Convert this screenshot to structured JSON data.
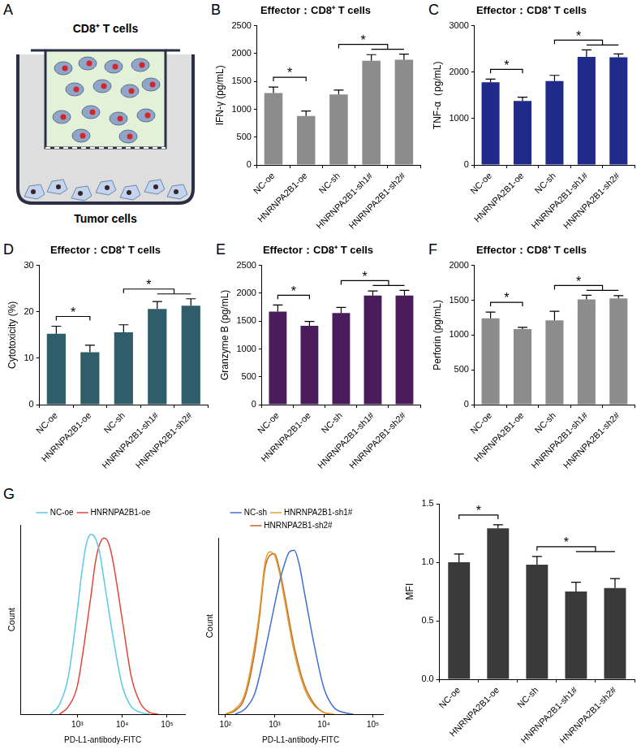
{
  "diagram": {
    "panel": "A",
    "top_label": "CD8⁺ T cells",
    "bottom_label": "Tumor cells"
  },
  "chart_data": [
    {
      "panel": "B",
      "type": "bar",
      "title": "Effector：CD8⁺ T cells",
      "ylabel": "IFN-γ (pg/mL)",
      "categories": [
        "NC-oe",
        "HNRNPA2B1-oe",
        "NC-sh",
        "HNRNPA2B1-sh1#",
        "HNRNPA2B1-sh2#"
      ],
      "values": [
        1290,
        880,
        1265,
        1870,
        1890
      ],
      "error": [
        110,
        90,
        80,
        110,
        100
      ],
      "color": "#8c8c8c",
      "ylim": [
        0,
        2500
      ],
      "yticks": [
        0,
        500,
        1000,
        1500,
        2000,
        2500
      ],
      "grid": false,
      "annotations": [
        {
          "text": "*",
          "left": [
            "NC-oe"
          ],
          "right": [
            "HNRNPA2B1-oe"
          ]
        },
        {
          "text": "*",
          "left": [
            "NC-sh"
          ],
          "right": [
            "HNRNPA2B1-sh1#",
            "HNRNPA2B1-sh2#"
          ]
        }
      ]
    },
    {
      "panel": "C",
      "type": "bar",
      "title": "Effector：CD8⁺ T cells",
      "ylabel": "TNF-α（pg/mL)",
      "categories": [
        "NC-oe",
        "HNRNPA2B1-oe",
        "NC-sh",
        "HNRNPA2B1-sh1#",
        "HNRNPA2B1-sh2#"
      ],
      "values": [
        1780,
        1380,
        1810,
        2330,
        2320
      ],
      "error": [
        70,
        80,
        120,
        150,
        70
      ],
      "color": "#1f2a8a",
      "ylim": [
        0,
        3000
      ],
      "yticks": [
        0,
        1000,
        2000,
        3000
      ],
      "grid": false,
      "annotations": [
        {
          "text": "*",
          "left": [
            "NC-oe"
          ],
          "right": [
            "HNRNPA2B1-oe"
          ]
        },
        {
          "text": "*",
          "left": [
            "NC-sh"
          ],
          "right": [
            "HNRNPA2B1-sh1#",
            "HNRNPA2B1-sh2#"
          ]
        }
      ]
    },
    {
      "panel": "D",
      "type": "bar",
      "title": "Effector：CD8⁺ T cells",
      "ylabel": "Cytotoxicity (%)",
      "categories": [
        "NC-oe",
        "HNRNPA2B1-oe",
        "NC-sh",
        "HNRNPA2B1-sh1#",
        "HNRNPA2B1-sh2#"
      ],
      "values": [
        15.3,
        11.3,
        15.6,
        20.6,
        21.3
      ],
      "error": [
        1.6,
        1.5,
        1.6,
        1.6,
        1.5
      ],
      "color": "#2f5d6a",
      "ylim": [
        0,
        30
      ],
      "yticks": [
        0,
        10,
        20,
        30
      ],
      "grid": false,
      "annotations": [
        {
          "text": "*",
          "left": [
            "NC-oe"
          ],
          "right": [
            "HNRNPA2B1-oe"
          ]
        },
        {
          "text": "*",
          "left": [
            "NC-sh"
          ],
          "right": [
            "HNRNPA2B1-sh1#",
            "HNRNPA2B1-sh2#"
          ]
        }
      ]
    },
    {
      "panel": "E",
      "type": "bar",
      "title": "Effector：CD8⁺ T cells",
      "ylabel": "Granzyme B (pg/mL)",
      "categories": [
        "NC-oe",
        "HNRNPA2B1-oe",
        "NC-sh",
        "HNRNPA2B1-sh1#",
        "HNRNPA2B1-sh2#"
      ],
      "values": [
        1670,
        1415,
        1645,
        1960,
        1960
      ],
      "error": [
        120,
        80,
        100,
        80,
        90
      ],
      "color": "#4a1c5c",
      "ylim": [
        0,
        2500
      ],
      "yticks": [
        0,
        500,
        1000,
        1500,
        2000,
        2500
      ],
      "grid": false,
      "annotations": [
        {
          "text": "*",
          "left": [
            "NC-oe"
          ],
          "right": [
            "HNRNPA2B1-oe"
          ]
        },
        {
          "text": "*",
          "left": [
            "NC-sh"
          ],
          "right": [
            "HNRNPA2B1-sh1#",
            "HNRNPA2B1-sh2#"
          ]
        }
      ]
    },
    {
      "panel": "F",
      "type": "bar",
      "title": "Effector：CD8⁺ T cells",
      "ylabel": "Perforin (pg/mL)",
      "categories": [
        "NC-oe",
        "HNRNPA2B1-oe",
        "NC-sh",
        "HNRNPA2B1-sh1#",
        "HNRNPA2B1-sh2#"
      ],
      "values": [
        1240,
        1085,
        1210,
        1510,
        1525
      ],
      "error": [
        90,
        25,
        130,
        60,
        40
      ],
      "color": "#8c8c8c",
      "ylim": [
        0,
        2000
      ],
      "yticks": [
        0,
        500,
        1000,
        1500,
        2000
      ],
      "grid": false,
      "annotations": [
        {
          "text": "*",
          "left": [
            "NC-oe"
          ],
          "right": [
            "HNRNPA2B1-oe"
          ]
        },
        {
          "text": "*",
          "left": [
            "NC-sh"
          ],
          "right": [
            "HNRNPA2B1-sh1#",
            "HNRNPA2B1-sh2#"
          ]
        }
      ]
    },
    {
      "panel": "G",
      "type": "line",
      "xlabel": "PD-L1-antibody-FITC",
      "ylabel": "Count",
      "log": "x",
      "xlim": [
        54,
        250000
      ],
      "xticks": [
        {
          "value": 1000,
          "label": "10³"
        },
        {
          "value": 10000,
          "label": "10⁴"
        },
        {
          "value": 100000,
          "label": "10⁵"
        }
      ],
      "ylim": [
        0,
        100
      ],
      "tick_labels": "x",
      "legend": "top",
      "grid": false,
      "series": [
        {
          "name": "NC-oe",
          "color": "#5bc8e8",
          "x": [
            251,
            398,
            631,
            1000,
            1259,
            1585,
            1995,
            2512,
            3162,
            3981,
            6310,
            10000,
            15849,
            25119,
            39811
          ],
          "values": [
            0,
            5,
            20,
            55,
            75,
            90,
            95,
            93,
            85,
            70,
            40,
            15,
            4,
            1,
            0
          ]
        },
        {
          "name": "HNRNPA2B1-oe",
          "color": "#e0453a",
          "x": [
            398,
            631,
            1000,
            1585,
            1995,
            2512,
            3162,
            3981,
            5012,
            6310,
            10000,
            15849,
            25119,
            39811,
            63096
          ],
          "values": [
            0,
            4,
            15,
            45,
            62,
            80,
            90,
            93,
            90,
            80,
            50,
            20,
            6,
            1,
            0
          ]
        }
      ]
    },
    {
      "type": "line",
      "xlabel": "PD-L1-antibody-FITC",
      "ylabel": "Count",
      "log": "x",
      "xlim": [
        72,
        160000
      ],
      "xticks": [
        {
          "value": 100,
          "label": "10²"
        },
        {
          "value": 1000,
          "label": "10³"
        },
        {
          "value": 10000,
          "label": "10⁴"
        },
        {
          "value": 100000,
          "label": "10⁵"
        }
      ],
      "ylim": [
        0,
        100
      ],
      "tick_labels": "x",
      "legend": "top",
      "grid": false,
      "series": [
        {
          "name": "NC-sh",
          "color": "#3f6fd0",
          "x": [
            158,
            251,
            398,
            631,
            1000,
            1259,
            1585,
            1995,
            2512,
            3162,
            3981,
            6310,
            10000,
            15849,
            25119,
            39811
          ],
          "values": [
            0,
            3,
            12,
            35,
            62,
            75,
            85,
            92,
            93,
            85,
            70,
            40,
            15,
            4,
            1,
            0
          ]
        },
        {
          "name": "HNRNPA2B1-sh1#",
          "color": "#e0a030",
          "x": [
            100,
            158,
            251,
            398,
            501,
            631,
            794,
            1000,
            1259,
            1585,
            2512,
            3981,
            6310,
            10000,
            15849
          ],
          "values": [
            0,
            3,
            12,
            40,
            60,
            85,
            92,
            90,
            80,
            65,
            35,
            15,
            5,
            1,
            0
          ]
        },
        {
          "name": "HNRNPA2B1-sh2#",
          "color": "#c8641e",
          "x": [
            100,
            158,
            251,
            398,
            501,
            631,
            794,
            1000,
            1259,
            1585,
            2512,
            3981,
            6310,
            10000,
            15849
          ],
          "values": [
            0,
            2,
            10,
            36,
            57,
            82,
            90,
            91,
            82,
            68,
            38,
            17,
            6,
            1,
            0
          ]
        }
      ]
    },
    {
      "type": "bar",
      "ylabel": "MFI",
      "categories": [
        "NC-oe",
        "HNRNPA2B1-oe",
        "NC-sh",
        "HNRNPA2B1-sh1#",
        "HNRNPA2B1-sh2#"
      ],
      "values": [
        1.0,
        1.29,
        0.98,
        0.75,
        0.78
      ],
      "error": [
        0.07,
        0.03,
        0.07,
        0.08,
        0.08
      ],
      "color": "#3a3a3a",
      "ylim": [
        0,
        1.5
      ],
      "yticks": [
        {
          "value": 0,
          "label": "0.0"
        },
        0.5,
        {
          "value": 1,
          "label": "1.0"
        },
        1.5
      ],
      "grid": false,
      "annotations": [
        {
          "text": "*",
          "left": [
            "NC-oe"
          ],
          "right": [
            "HNRNPA2B1-oe"
          ]
        },
        {
          "text": "*",
          "left": [
            "NC-sh"
          ],
          "right": [
            "HNRNPA2B1-sh1#",
            "HNRNPA2B1-sh2#"
          ]
        }
      ]
    }
  ]
}
